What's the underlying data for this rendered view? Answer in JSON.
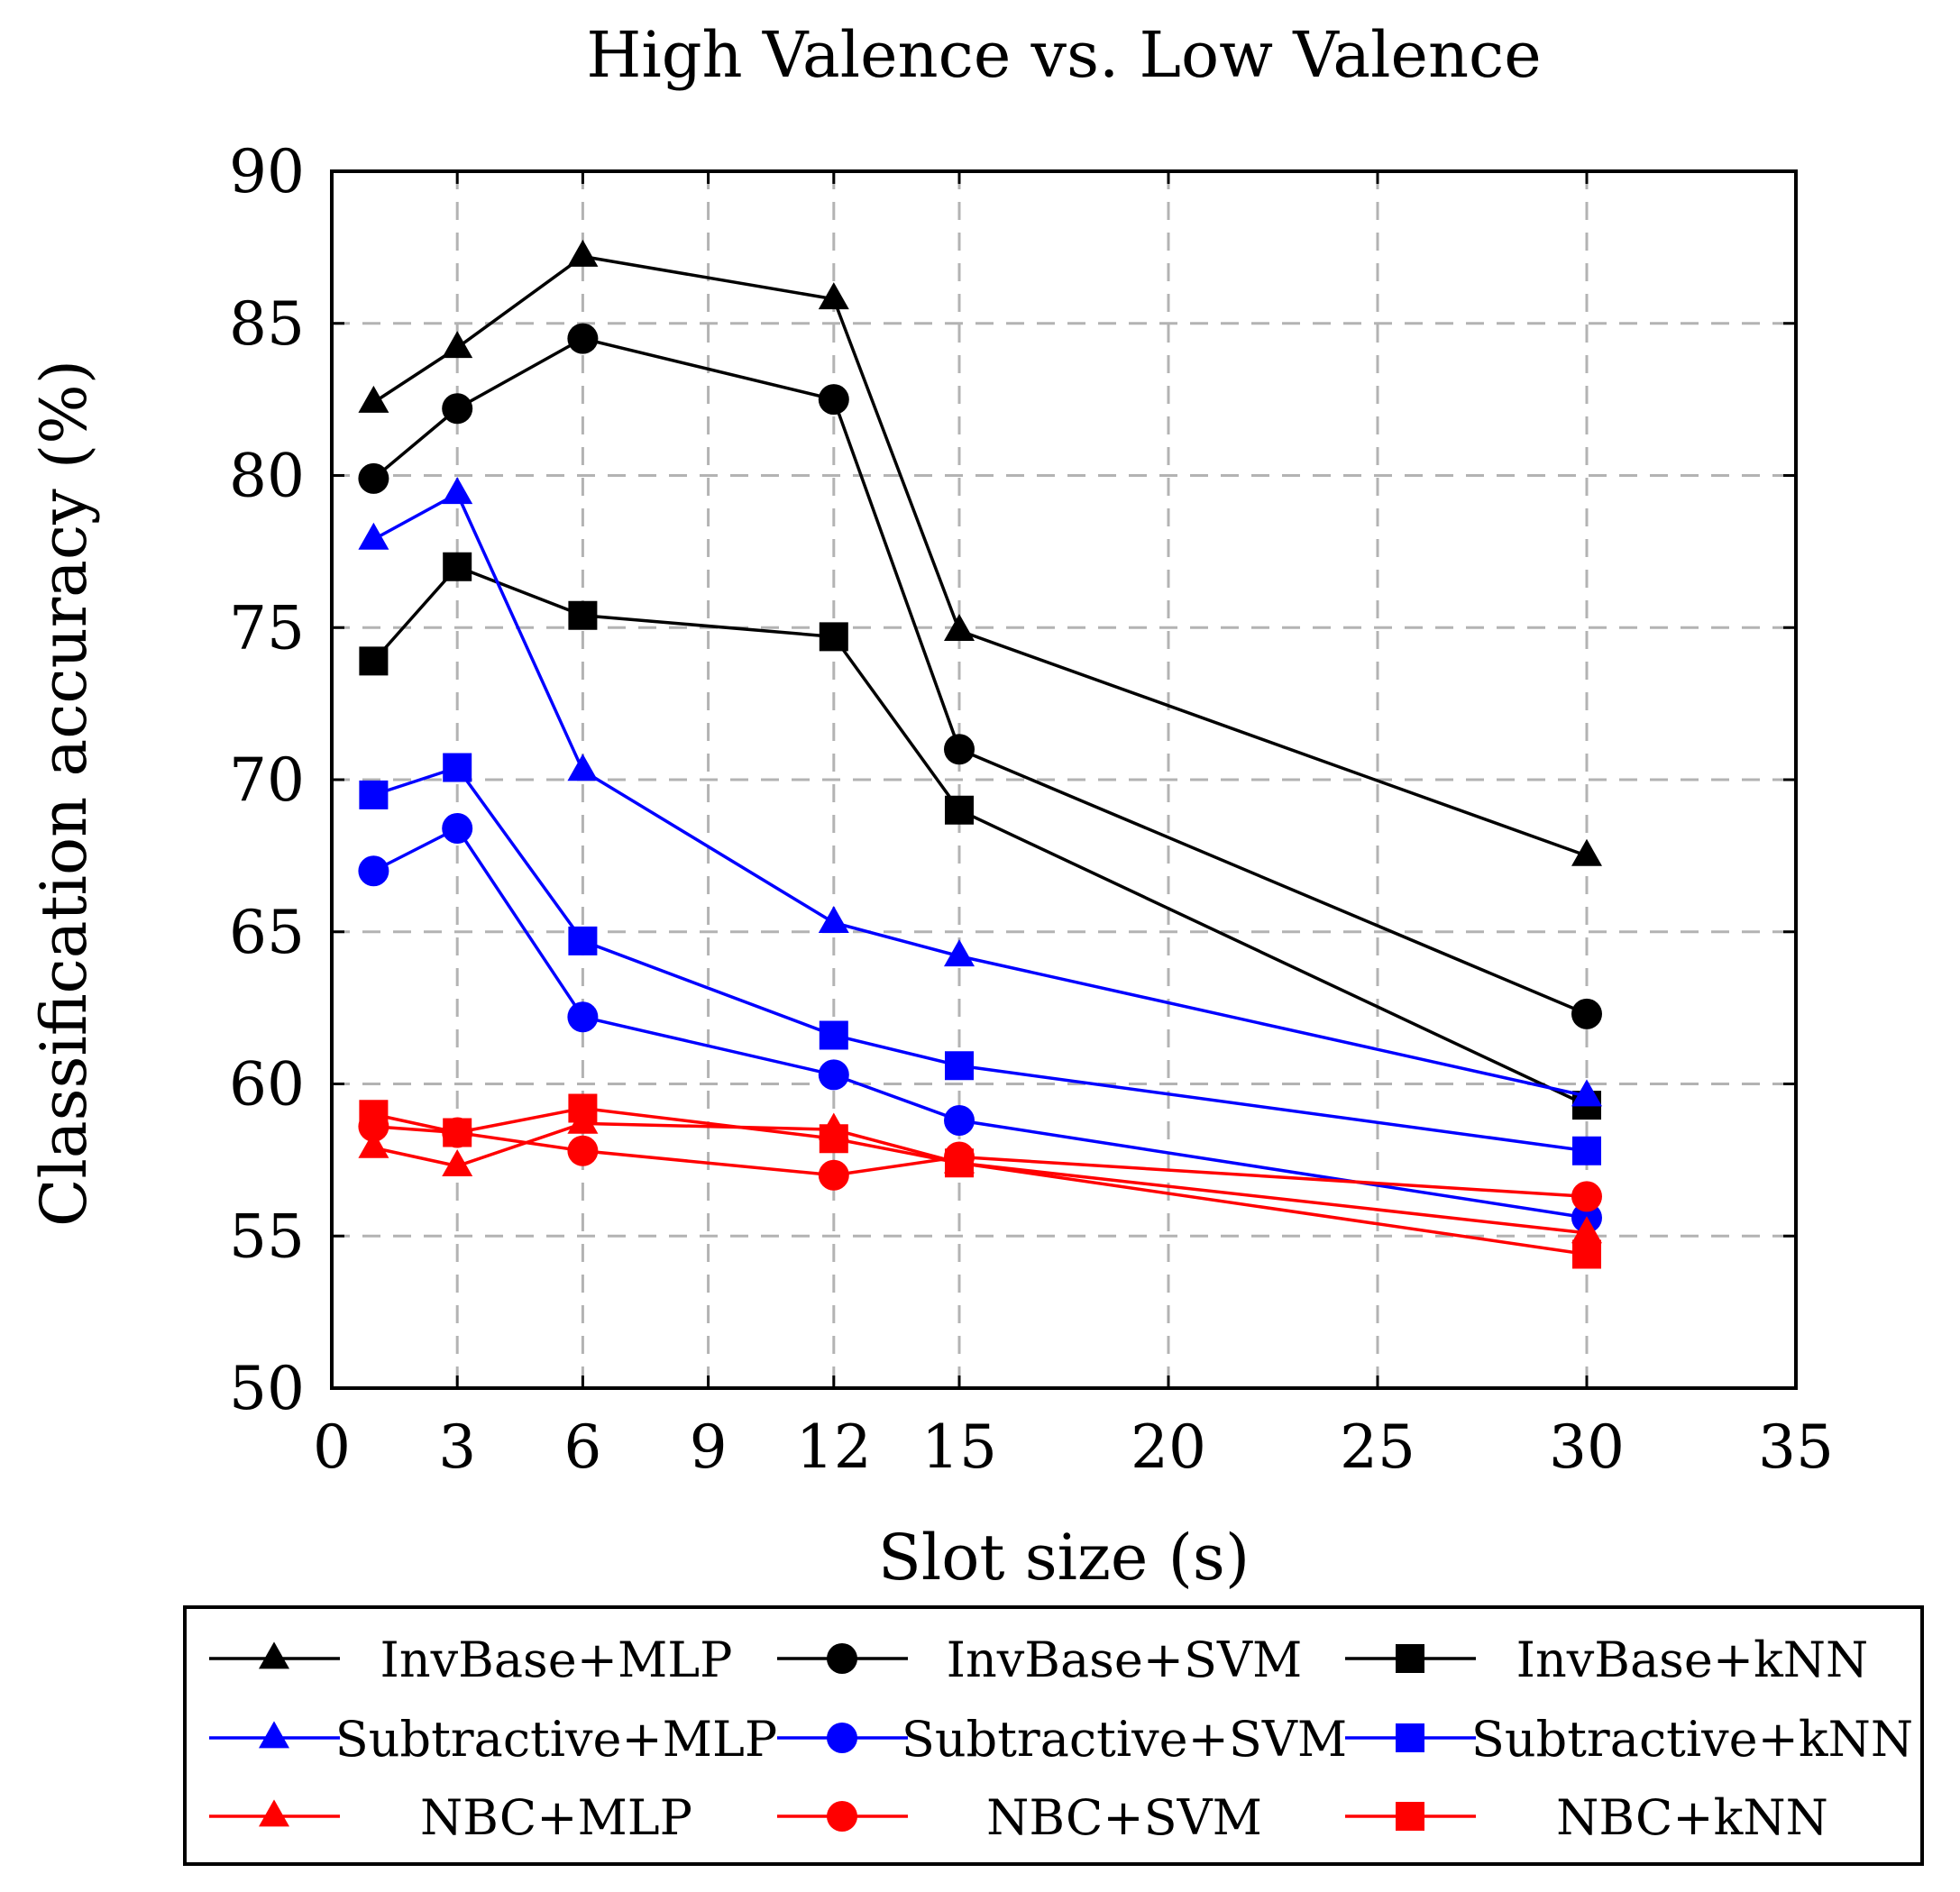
{
  "chart_data": {
    "type": "line",
    "title": "High Valence vs. Low Valence",
    "xlabel": "Slot size (s)",
    "ylabel": "Classification accuracy (%)",
    "xlim": [
      0,
      35
    ],
    "ylim": [
      50,
      90
    ],
    "xticks": [
      0,
      3,
      6,
      9,
      12,
      15,
      20,
      25,
      30,
      35
    ],
    "yticks": [
      50,
      55,
      60,
      65,
      70,
      75,
      80,
      85,
      90
    ],
    "grid": true,
    "legend_position": "bottom",
    "x": [
      1,
      3,
      6,
      12,
      15,
      30
    ],
    "series": [
      {
        "name": "InvBase+MLP",
        "color": "#000000",
        "marker": "triangle",
        "values": [
          82.4,
          84.2,
          87.2,
          85.8,
          74.9,
          67.5
        ]
      },
      {
        "name": "InvBase+SVM",
        "color": "#000000",
        "marker": "circle",
        "values": [
          79.9,
          82.2,
          84.5,
          82.5,
          71.0,
          62.3
        ]
      },
      {
        "name": "InvBase+kNN",
        "color": "#000000",
        "marker": "square",
        "values": [
          73.9,
          77.0,
          75.4,
          74.7,
          69.0,
          59.3
        ]
      },
      {
        "name": "Subtractive+MLP",
        "color": "#0000ff",
        "marker": "triangle",
        "values": [
          77.9,
          79.4,
          70.3,
          65.3,
          64.2,
          59.6
        ]
      },
      {
        "name": "Subtractive+SVM",
        "color": "#0000ff",
        "marker": "circle",
        "values": [
          67.0,
          68.4,
          62.2,
          60.3,
          58.8,
          55.6
        ]
      },
      {
        "name": "Subtractive+kNN",
        "color": "#0000ff",
        "marker": "square",
        "values": [
          69.5,
          70.4,
          64.7,
          61.6,
          60.6,
          57.8
        ]
      },
      {
        "name": "NBC+MLP",
        "color": "#ff0000",
        "marker": "triangle",
        "values": [
          57.9,
          57.3,
          58.7,
          58.5,
          57.4,
          55.1
        ]
      },
      {
        "name": "NBC+SVM",
        "color": "#ff0000",
        "marker": "circle",
        "values": [
          58.6,
          58.4,
          57.8,
          57.0,
          57.6,
          56.3
        ]
      },
      {
        "name": "NBC+kNN",
        "color": "#ff0000",
        "marker": "square",
        "values": [
          59.0,
          58.4,
          59.2,
          58.2,
          57.4,
          54.4
        ]
      }
    ]
  }
}
